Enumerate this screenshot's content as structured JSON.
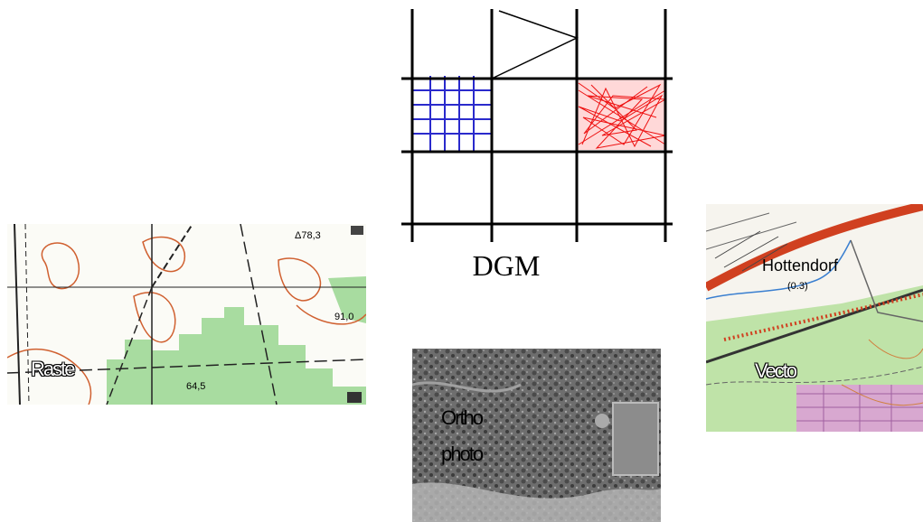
{
  "dgm": {
    "label": "DGM",
    "colors": {
      "grid": "#000000",
      "raster_cell": "#2a2acc",
      "tin_cell": "#ee1111"
    }
  },
  "raster_map": {
    "overlay_label": "Raste",
    "map_labels": [
      "Δ78,3",
      "91,0",
      "64,5"
    ],
    "colors": {
      "contour": "#d06030",
      "forest": "#a8dca0",
      "road": "#222222"
    }
  },
  "ortho_photo": {
    "overlay_label_line1": "Ortho",
    "overlay_label_line2": "photo",
    "colors": {
      "base": "#7a7a7a"
    }
  },
  "vector_map": {
    "overlay_label": "Vecto",
    "map_labels": [
      "Hottendorf",
      "(0.3)"
    ],
    "colors": {
      "major_road": "#d04020",
      "forest": "#bfe3a8",
      "water": "#3a7fd0",
      "residential": "#d8a8d0"
    }
  }
}
